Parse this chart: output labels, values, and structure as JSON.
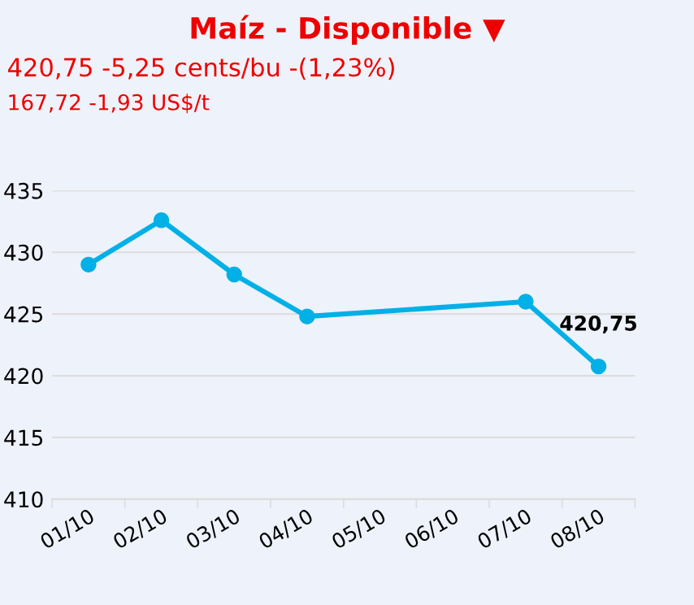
{
  "chart_data": {
    "type": "line",
    "title": "Maíz - Disponible ▼",
    "subtitle": "420,75 -5,25 cents/bu -(1,23%)",
    "annotations": [
      "167,72 -1,93 US$/t"
    ],
    "categories": [
      "01/10",
      "02/10",
      "03/10",
      "04/10",
      "05/10",
      "06/10",
      "07/10",
      "08/10"
    ],
    "series": [
      {
        "color": "#00b0e6",
        "values": [
          429,
          432.6,
          428.2,
          424.8,
          null,
          null,
          426,
          420.75
        ],
        "value_labels": [
          null,
          null,
          null,
          null,
          null,
          null,
          null,
          "420,75"
        ]
      }
    ],
    "ylim": [
      410,
      435
    ],
    "yticks": [
      410,
      415,
      420,
      425,
      430,
      435
    ],
    "grid": "y",
    "marker": "circle",
    "line_style": "solid"
  }
}
